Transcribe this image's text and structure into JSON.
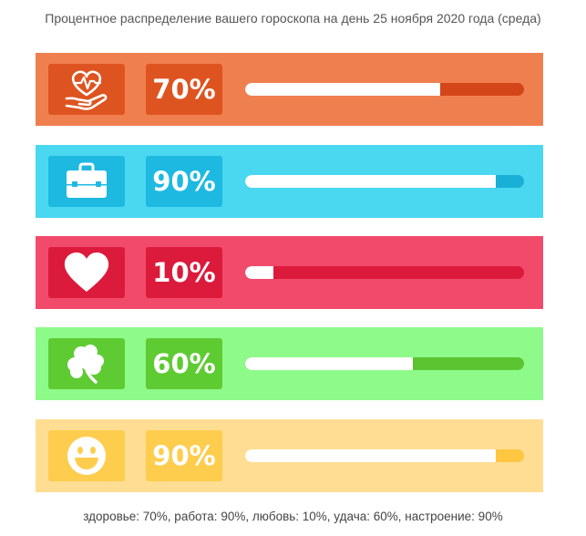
{
  "title": "Процентное распределение вашего гороскопа на день 25 ноября 2020 года (среда)",
  "footer": "здоровье: 70%, работа: 90%, любовь: 10%, удача: 60%, настроение: 90%",
  "rows": [
    {
      "category": "здоровье",
      "icon": "heart-pulse-hand-icon",
      "percent_label": "70%",
      "value": 70,
      "colors": {
        "card": "#f07f4f",
        "tile": "#de5420",
        "track": "#d4461a"
      }
    },
    {
      "category": "работа",
      "icon": "briefcase-icon",
      "percent_label": "90%",
      "value": 90,
      "colors": {
        "card": "#4ad7f0",
        "tile": "#1db9e1",
        "track": "#1aafd6"
      }
    },
    {
      "category": "любовь",
      "icon": "heart-icon",
      "percent_label": "10%",
      "value": 10,
      "colors": {
        "card": "#f24a6a",
        "tile": "#dc1a3c",
        "track": "#dc1a3c"
      }
    },
    {
      "category": "удача",
      "icon": "clover-icon",
      "percent_label": "60%",
      "value": 60,
      "colors": {
        "card": "#8efa8a",
        "tile": "#5fcb33",
        "track": "#5bc431"
      }
    },
    {
      "category": "настроение",
      "icon": "smiley-icon",
      "percent_label": "90%",
      "value": 90,
      "colors": {
        "card": "#ffdd93",
        "tile": "#ffcd4e",
        "track": "#ffc642"
      }
    }
  ]
}
